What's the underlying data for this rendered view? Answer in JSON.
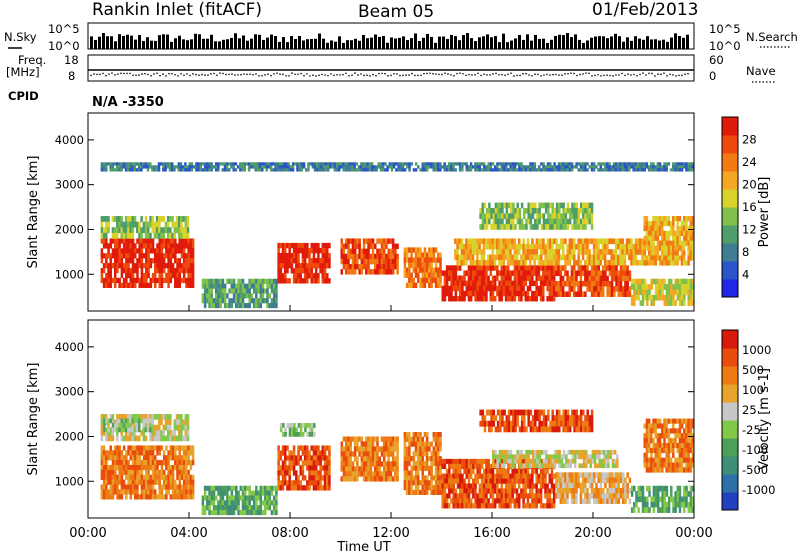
{
  "header": {
    "station": "Rankin Inlet (fitACF)",
    "beam": "Beam 05",
    "date": "01/Feb/2013"
  },
  "strips": {
    "nsky_label": "N.Sky",
    "nsearch_label": "N.Search",
    "noise_ticks": [
      "10^5",
      "10^0"
    ],
    "freq_label_1": "Freq.",
    "freq_label_2": "[MHz]",
    "freq_ticks": [
      "18",
      "8"
    ],
    "nave_label": "Nave",
    "nave_ticks": [
      "60",
      "0"
    ],
    "cpid_label": "CPID",
    "cpid_value": "N/A -3350"
  },
  "colors": {
    "power": [
      "#1e28e6",
      "#2a55c8",
      "#3f7e92",
      "#4f9d6b",
      "#7fc14a",
      "#d9d22a",
      "#f5a623",
      "#f27a12",
      "#ee4a0c",
      "#e01b0a"
    ],
    "velocity": [
      "#2040c0",
      "#2d6fa8",
      "#3f8e78",
      "#4e9f57",
      "#84c84a",
      "#c7c7c7",
      "#e8a32c",
      "#ee7a14",
      "#ea4c0c",
      "#d81a0a"
    ]
  },
  "chart_data": [
    {
      "type": "heatmap",
      "panel": "power",
      "ylabel": "Slant Range [km]",
      "colorbar_label": "Power [dB]",
      "colorbar_ticks": [
        "28",
        "24",
        "20",
        "16",
        "12",
        "8",
        "4"
      ],
      "ylim": [
        180,
        4600
      ],
      "yticks": [
        1000,
        2000,
        3000,
        4000
      ],
      "xlim_hours": [
        0,
        24
      ],
      "bands": [
        {
          "t0": 0.5,
          "t1": 4.2,
          "r0": 700,
          "r1": 1800,
          "level": 9
        },
        {
          "t0": 0.5,
          "t1": 4.0,
          "r0": 1800,
          "r1": 2300,
          "level": 4
        },
        {
          "t0": 4.5,
          "t1": 7.5,
          "r0": 250,
          "r1": 900,
          "level": 3
        },
        {
          "t0": 7.5,
          "t1": 9.6,
          "r0": 800,
          "r1": 1700,
          "level": 9
        },
        {
          "t0": 10.0,
          "t1": 12.3,
          "r0": 1000,
          "r1": 1800,
          "level": 8
        },
        {
          "t0": 12.5,
          "t1": 14.0,
          "r0": 700,
          "r1": 1600,
          "level": 7
        },
        {
          "t0": 14.0,
          "t1": 18.5,
          "r0": 400,
          "r1": 1200,
          "level": 9
        },
        {
          "t0": 14.5,
          "t1": 22.0,
          "r0": 1200,
          "r1": 1800,
          "level": 6
        },
        {
          "t0": 18.5,
          "t1": 21.5,
          "r0": 500,
          "r1": 1200,
          "level": 8
        },
        {
          "t0": 21.5,
          "t1": 24.0,
          "r0": 300,
          "r1": 900,
          "level": 5
        },
        {
          "t0": 22.0,
          "t1": 24.0,
          "r0": 1200,
          "r1": 2300,
          "level": 6
        },
        {
          "t0": 15.5,
          "t1": 20.0,
          "r0": 2000,
          "r1": 2600,
          "level": 4
        },
        {
          "t0": 0.5,
          "t1": 24.0,
          "r0": 3300,
          "r1": 3500,
          "level": 2
        }
      ]
    },
    {
      "type": "heatmap",
      "panel": "velocity",
      "ylabel": "Slant Range [km]",
      "xlabel": "Time UT",
      "colorbar_label": "Velocity [m s-1]",
      "colorbar_ticks": [
        "1000",
        "500",
        "100",
        "25",
        "-25",
        "-100",
        "-500",
        "-1000"
      ],
      "ylim": [
        180,
        4600
      ],
      "yticks": [
        1000,
        2000,
        3000,
        4000
      ],
      "xlim_hours": [
        0,
        24
      ],
      "xticks": [
        "00:00",
        "04:00",
        "08:00",
        "12:00",
        "16:00",
        "20:00",
        "00:00"
      ],
      "bands": [
        {
          "t0": 0.5,
          "t1": 4.2,
          "r0": 600,
          "r1": 1800,
          "level": 7
        },
        {
          "t0": 0.5,
          "t1": 4.0,
          "r0": 1900,
          "r1": 2500,
          "level": 5
        },
        {
          "t0": 0.6,
          "t1": 2.5,
          "r0": 2100,
          "r1": 2400,
          "level": 4
        },
        {
          "t0": 4.5,
          "t1": 7.5,
          "r0": 250,
          "r1": 900,
          "level": 3
        },
        {
          "t0": 7.5,
          "t1": 9.6,
          "r0": 800,
          "r1": 1800,
          "level": 8
        },
        {
          "t0": 7.6,
          "t1": 9.0,
          "r0": 2000,
          "r1": 2300,
          "level": 4
        },
        {
          "t0": 10.0,
          "t1": 12.3,
          "r0": 1000,
          "r1": 2000,
          "level": 7
        },
        {
          "t0": 12.5,
          "t1": 14.0,
          "r0": 700,
          "r1": 2100,
          "level": 7
        },
        {
          "t0": 14.0,
          "t1": 18.5,
          "r0": 400,
          "r1": 1500,
          "level": 8
        },
        {
          "t0": 16.0,
          "t1": 21.0,
          "r0": 1300,
          "r1": 1700,
          "level": 5
        },
        {
          "t0": 18.5,
          "t1": 21.5,
          "r0": 500,
          "r1": 1200,
          "level": 6
        },
        {
          "t0": 21.5,
          "t1": 24.0,
          "r0": 300,
          "r1": 900,
          "level": 3
        },
        {
          "t0": 22.0,
          "t1": 24.0,
          "r0": 1200,
          "r1": 2400,
          "level": 7
        },
        {
          "t0": 15.5,
          "t1": 20.0,
          "r0": 2100,
          "r1": 2600,
          "level": 8
        }
      ]
    }
  ]
}
